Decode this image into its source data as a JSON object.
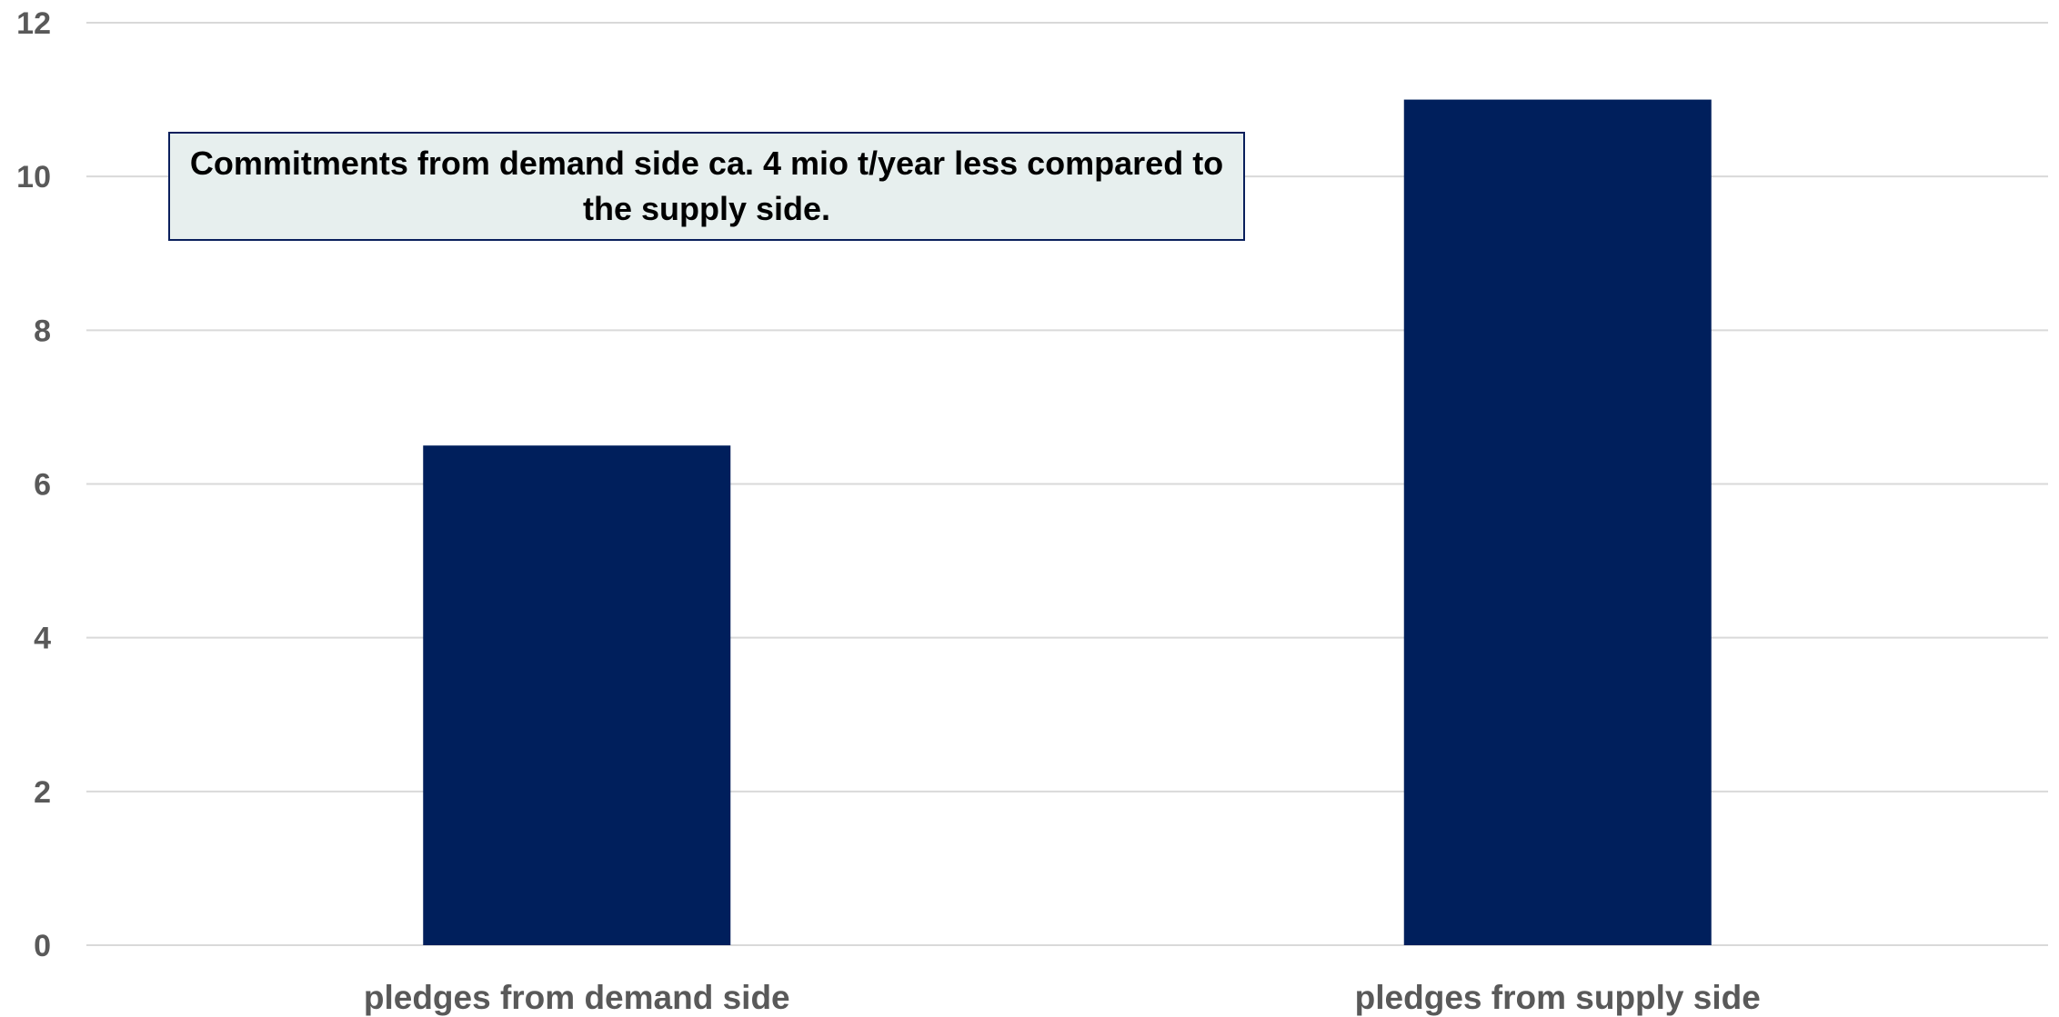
{
  "chart_data": {
    "type": "bar",
    "categories": [
      "pledges from demand side",
      "pledges from supply side"
    ],
    "values": [
      6.5,
      11
    ],
    "ylim": [
      0,
      12
    ],
    "yticks": [
      0,
      2,
      4,
      6,
      8,
      10,
      12
    ],
    "grid": true,
    "title": "",
    "xlabel": "",
    "ylabel": "",
    "bar_color": "#001f5c",
    "annotation": "Commitments from demand side ca. 4 mio t/year less compared to the supply side."
  }
}
